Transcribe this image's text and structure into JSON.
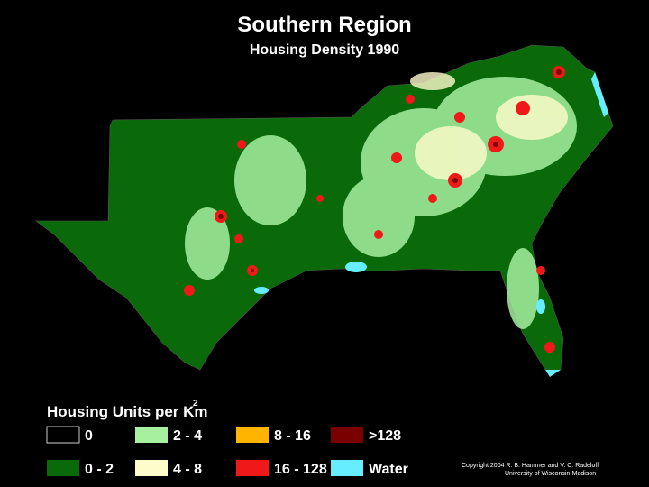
{
  "header": {
    "title": "Southern Region",
    "subtitle": "Housing Density 1990"
  },
  "legend": {
    "title": "Housing Units per Km",
    "title_superscript": "2",
    "items": [
      {
        "label": "0",
        "color": "#000000"
      },
      {
        "label": "0 - 2",
        "color": "#0a6a0a"
      },
      {
        "label": "2 - 4",
        "color": "#a6f0a0"
      },
      {
        "label": "4 - 8",
        "color": "#fffccc"
      },
      {
        "label": "8 - 16",
        "color": "#ffb400"
      },
      {
        "label": "16 - 128",
        "color": "#f01818"
      },
      {
        "label": ">128",
        "color": "#7a0000"
      },
      {
        "label": "Water",
        "color": "#66eeff"
      }
    ]
  },
  "credit": {
    "line1": "Copyright 2004 R. B. Hammer and V. C. Radeloff",
    "line2": "University of Wisconsin-Madison"
  }
}
